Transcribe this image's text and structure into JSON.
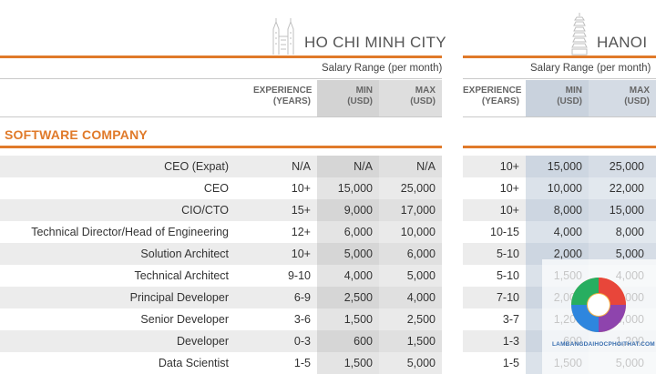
{
  "hcm": {
    "city": "HO CHI MINH CITY",
    "salary_range": "Salary Range (per month)",
    "col_experience": [
      "EXPERIENCE",
      "(YEARS)"
    ],
    "col_min": [
      "MIN",
      "(USD)"
    ],
    "col_max": [
      "MAX",
      "(USD)"
    ]
  },
  "hanoi": {
    "city": "HANOI",
    "salary_range": "Salary Range (per month)",
    "col_experience": [
      "EXPERIENCE",
      "(YEARS)"
    ],
    "col_min": [
      "MIN",
      "(USD)"
    ],
    "col_max": [
      "MAX",
      "(USD)"
    ]
  },
  "section_title": "SOFTWARE COMPANY",
  "rows": [
    {
      "role": "CEO (Expat)",
      "hcm": [
        "N/A",
        "N/A",
        "N/A"
      ],
      "hanoi": [
        "10+",
        "15,000",
        "25,000"
      ]
    },
    {
      "role": "CEO",
      "hcm": [
        "10+",
        "15,000",
        "25,000"
      ],
      "hanoi": [
        "10+",
        "10,000",
        "22,000"
      ]
    },
    {
      "role": "CIO/CTO",
      "hcm": [
        "15+",
        "9,000",
        "17,000"
      ],
      "hanoi": [
        "10+",
        "8,000",
        "15,000"
      ]
    },
    {
      "role": "Technical Director/Head of Engineering",
      "hcm": [
        "12+",
        "6,000",
        "10,000"
      ],
      "hanoi": [
        "10-15",
        "4,000",
        "8,000"
      ]
    },
    {
      "role": "Solution Architect",
      "hcm": [
        "10+",
        "5,000",
        "6,000"
      ],
      "hanoi": [
        "5-10",
        "2,000",
        "5,000"
      ]
    },
    {
      "role": "Technical Architect",
      "hcm": [
        "9-10",
        "4,000",
        "5,000"
      ],
      "hanoi": [
        "5-10",
        "1,500",
        "4,000"
      ]
    },
    {
      "role": "Principal Developer",
      "hcm": [
        "6-9",
        "2,500",
        "4,000"
      ],
      "hanoi": [
        "7-10",
        "2,000",
        "5,000"
      ]
    },
    {
      "role": "Senior Developer",
      "hcm": [
        "3-6",
        "1,500",
        "2,500"
      ],
      "hanoi": [
        "3-7",
        "1,200",
        "3,000"
      ]
    },
    {
      "role": "Developer",
      "hcm": [
        "0-3",
        "600",
        "1,500"
      ],
      "hanoi": [
        "1-3",
        "600",
        "1,200"
      ]
    },
    {
      "role": "Data Scientist",
      "hcm": [
        "1-5",
        "1,500",
        "5,000"
      ],
      "hanoi": [
        "1-5",
        "1,500",
        "5,000"
      ]
    }
  ],
  "watermark": "LAMBANGDAIHOCPHOITHAT.COM",
  "colors": {
    "accent_orange": "#e07a2a",
    "row_band": "#ececec",
    "col_gray": "#d9d9d9",
    "col_blue": "#d3dbe5"
  }
}
